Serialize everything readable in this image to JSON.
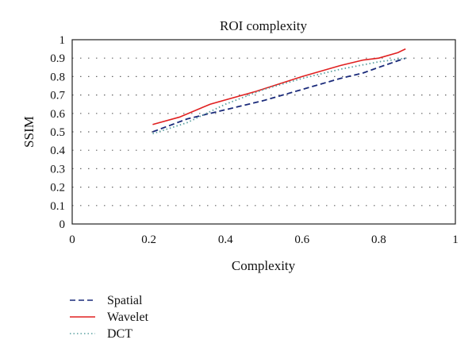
{
  "chart_data": {
    "type": "line",
    "title": "ROI complexity",
    "xlabel": "Complexity",
    "ylabel": "SSIM",
    "xlim": [
      0,
      1
    ],
    "ylim": [
      0,
      1
    ],
    "xticks": [
      "0",
      "0.2",
      "0.4",
      "0.6",
      "0.8",
      "1"
    ],
    "yticks": [
      "0",
      "0.1",
      "0.2",
      "0.3",
      "0.4",
      "0.5",
      "0.6",
      "0.7",
      "0.8",
      "0.9",
      "1"
    ],
    "grid": "dotted horizontal",
    "legend_position": "bottom-left",
    "series": [
      {
        "name": "Spatial",
        "color": "#1a2a7a",
        "style": "dashed",
        "x": [
          0.21,
          0.3,
          0.4,
          0.5,
          0.6,
          0.7,
          0.76,
          0.8,
          0.87
        ],
        "y": [
          0.5,
          0.57,
          0.62,
          0.67,
          0.73,
          0.79,
          0.82,
          0.85,
          0.9
        ]
      },
      {
        "name": "Wavelet",
        "color": "#e02020",
        "style": "solid",
        "x": [
          0.21,
          0.28,
          0.36,
          0.48,
          0.6,
          0.7,
          0.76,
          0.8,
          0.85,
          0.87
        ],
        "y": [
          0.54,
          0.58,
          0.65,
          0.72,
          0.8,
          0.86,
          0.89,
          0.9,
          0.93,
          0.95
        ]
      },
      {
        "name": "DCT",
        "color": "#5aa0a0",
        "style": "dotted",
        "x": [
          0.21,
          0.3,
          0.4,
          0.5,
          0.6,
          0.7,
          0.8,
          0.87
        ],
        "y": [
          0.49,
          0.55,
          0.65,
          0.73,
          0.79,
          0.84,
          0.88,
          0.9
        ]
      }
    ]
  }
}
